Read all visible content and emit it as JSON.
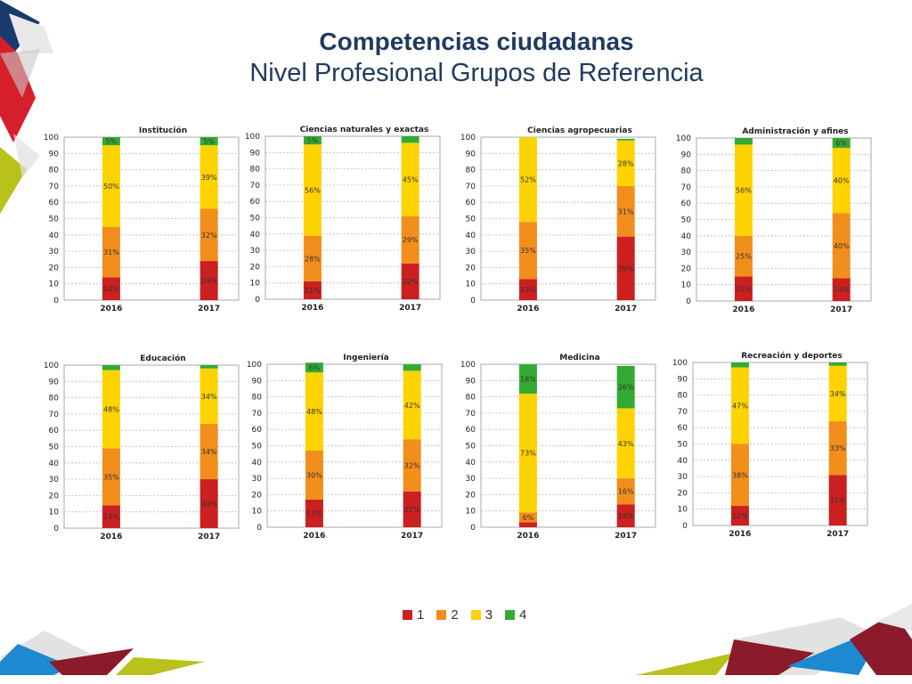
{
  "slide": {
    "title": "Competencias ciudadanas",
    "subtitle": "Nivel Profesional Grupos de Referencia"
  },
  "colors": {
    "1": "#cc1f1f",
    "2": "#f28e1c",
    "3": "#fdd300",
    "4": "#33aa33",
    "title": "#1f3a5f"
  },
  "legend": [
    {
      "label": "1",
      "color": "#cc1f1f"
    },
    {
      "label": "2",
      "color": "#f28e1c"
    },
    {
      "label": "3",
      "color": "#fdd300"
    },
    {
      "label": "4",
      "color": "#33aa33"
    }
  ],
  "chart_data": [
    {
      "type": "bar",
      "stacked": true,
      "title": "Institución",
      "categories": [
        "2016",
        "2017"
      ],
      "ylim": [
        0,
        100
      ],
      "yticks": [
        0,
        10,
        20,
        30,
        40,
        50,
        60,
        70,
        80,
        90,
        100
      ],
      "grid": true,
      "series": [
        {
          "name": "1",
          "values": [
            14,
            24
          ],
          "labels": [
            "14%",
            "24%"
          ]
        },
        {
          "name": "2",
          "values": [
            31,
            32
          ],
          "labels": [
            "31%",
            "32%"
          ]
        },
        {
          "name": "3",
          "values": [
            50,
            39
          ],
          "labels": [
            "50%",
            "39%"
          ]
        },
        {
          "name": "4",
          "values": [
            5,
            5
          ],
          "labels": [
            "5%",
            "5%"
          ]
        }
      ]
    },
    {
      "type": "bar",
      "stacked": true,
      "title": "Ciencias naturales y exactas",
      "categories": [
        "2016",
        "2017"
      ],
      "ylim": [
        0,
        100
      ],
      "yticks": [
        0,
        10,
        20,
        30,
        40,
        50,
        60,
        70,
        80,
        90,
        100
      ],
      "grid": true,
      "series": [
        {
          "name": "1",
          "values": [
            11,
            22
          ],
          "labels": [
            "11%",
            "22%"
          ]
        },
        {
          "name": "2",
          "values": [
            28,
            29
          ],
          "labels": [
            "28%",
            "29%"
          ]
        },
        {
          "name": "3",
          "values": [
            56,
            45
          ],
          "labels": [
            "56%",
            "45%"
          ]
        },
        {
          "name": "4",
          "values": [
            5,
            4
          ],
          "labels": [
            "5%",
            ""
          ]
        }
      ]
    },
    {
      "type": "bar",
      "stacked": true,
      "title": "Ciencias agropecuarias",
      "categories": [
        "2016",
        "2017"
      ],
      "ylim": [
        0,
        100
      ],
      "yticks": [
        0,
        10,
        20,
        30,
        40,
        50,
        60,
        70,
        80,
        90,
        100
      ],
      "grid": true,
      "series": [
        {
          "name": "1",
          "values": [
            13,
            39
          ],
          "labels": [
            "13%",
            "39%"
          ]
        },
        {
          "name": "2",
          "values": [
            35,
            31
          ],
          "labels": [
            "35%",
            "31%"
          ]
        },
        {
          "name": "3",
          "values": [
            52,
            28
          ],
          "labels": [
            "52%",
            "28%"
          ]
        },
        {
          "name": "4",
          "values": [
            0,
            1
          ],
          "labels": [
            "",
            ""
          ]
        }
      ]
    },
    {
      "type": "bar",
      "stacked": true,
      "title": "Administración y afines",
      "categories": [
        "2016",
        "2017"
      ],
      "ylim": [
        0,
        100
      ],
      "yticks": [
        0,
        10,
        20,
        30,
        40,
        50,
        60,
        70,
        80,
        90,
        100
      ],
      "grid": true,
      "series": [
        {
          "name": "1",
          "values": [
            15,
            14
          ],
          "labels": [
            "15%",
            "14%"
          ]
        },
        {
          "name": "2",
          "values": [
            25,
            40
          ],
          "labels": [
            "25%",
            "40%"
          ]
        },
        {
          "name": "3",
          "values": [
            56,
            40
          ],
          "labels": [
            "56%",
            "40%"
          ]
        },
        {
          "name": "4",
          "values": [
            4,
            6
          ],
          "labels": [
            "",
            "6%"
          ]
        }
      ]
    },
    {
      "type": "bar",
      "stacked": true,
      "title": "Educación",
      "categories": [
        "2016",
        "2017"
      ],
      "ylim": [
        0,
        100
      ],
      "yticks": [
        0,
        10,
        20,
        30,
        40,
        50,
        60,
        70,
        80,
        90,
        100
      ],
      "grid": true,
      "series": [
        {
          "name": "1",
          "values": [
            14,
            30
          ],
          "labels": [
            "14%",
            "30%"
          ]
        },
        {
          "name": "2",
          "values": [
            35,
            34
          ],
          "labels": [
            "35%",
            "34%"
          ]
        },
        {
          "name": "3",
          "values": [
            48,
            34
          ],
          "labels": [
            "48%",
            "34%"
          ]
        },
        {
          "name": "4",
          "values": [
            3,
            2
          ],
          "labels": [
            "",
            ""
          ]
        }
      ]
    },
    {
      "type": "bar",
      "stacked": true,
      "title": "Ingeniería",
      "categories": [
        "2016",
        "2017"
      ],
      "ylim": [
        0,
        100
      ],
      "yticks": [
        0,
        10,
        20,
        30,
        40,
        50,
        60,
        70,
        80,
        90,
        100
      ],
      "grid": true,
      "series": [
        {
          "name": "1",
          "values": [
            17,
            22
          ],
          "labels": [
            "17%",
            "22%"
          ]
        },
        {
          "name": "2",
          "values": [
            30,
            32
          ],
          "labels": [
            "30%",
            "32%"
          ]
        },
        {
          "name": "3",
          "values": [
            48,
            42
          ],
          "labels": [
            "48%",
            "42%"
          ]
        },
        {
          "name": "4",
          "values": [
            6,
            4
          ],
          "labels": [
            "6%",
            ""
          ]
        }
      ]
    },
    {
      "type": "bar",
      "stacked": true,
      "title": "Medicina",
      "categories": [
        "2016",
        "2017"
      ],
      "ylim": [
        0,
        100
      ],
      "yticks": [
        0,
        10,
        20,
        30,
        40,
        50,
        60,
        70,
        80,
        90,
        100
      ],
      "grid": true,
      "series": [
        {
          "name": "1",
          "values": [
            3,
            14
          ],
          "labels": [
            "",
            "14%"
          ]
        },
        {
          "name": "2",
          "values": [
            6,
            16
          ],
          "labels": [
            "6%",
            "16%"
          ]
        },
        {
          "name": "3",
          "values": [
            73,
            43
          ],
          "labels": [
            "73%",
            "43%"
          ]
        },
        {
          "name": "4",
          "values": [
            18,
            26
          ],
          "labels": [
            "18%",
            "26%"
          ]
        }
      ]
    },
    {
      "type": "bar",
      "stacked": true,
      "title": "Recreación y deportes",
      "categories": [
        "2016",
        "2017"
      ],
      "ylim": [
        0,
        100
      ],
      "yticks": [
        0,
        10,
        20,
        30,
        40,
        50,
        60,
        70,
        80,
        90,
        100
      ],
      "grid": true,
      "series": [
        {
          "name": "1",
          "values": [
            12,
            31
          ],
          "labels": [
            "12%",
            "31%"
          ]
        },
        {
          "name": "2",
          "values": [
            38,
            33
          ],
          "labels": [
            "38%",
            "33%"
          ]
        },
        {
          "name": "3",
          "values": [
            47,
            34
          ],
          "labels": [
            "47%",
            "34%"
          ]
        },
        {
          "name": "4",
          "values": [
            3,
            2
          ],
          "labels": [
            "",
            ""
          ]
        }
      ]
    }
  ]
}
